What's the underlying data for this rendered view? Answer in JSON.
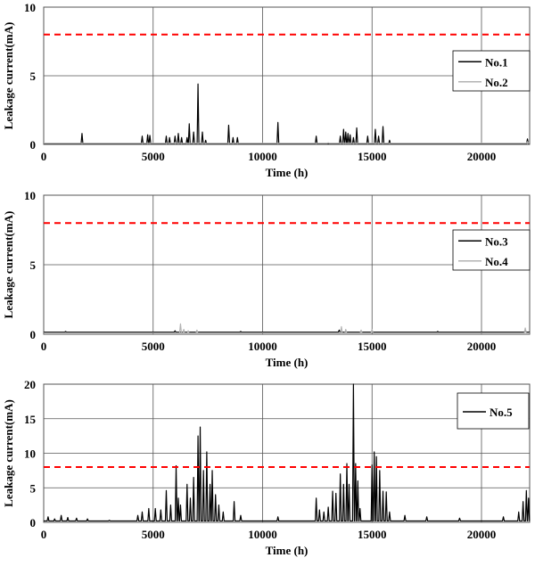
{
  "chart_data": [
    {
      "type": "line",
      "xlabel": "Time (h)",
      "ylabel": "Leakage current(mA)",
      "xlim": [
        0,
        22200
      ],
      "ylim": [
        0,
        10
      ],
      "xticks": [
        0,
        5000,
        10000,
        15000,
        20000
      ],
      "yticks": [
        0,
        5,
        10
      ],
      "grid": true,
      "legend_position": "right",
      "threshold": {
        "value": 8,
        "color": "#ff0000",
        "style": "dashed"
      },
      "series": [
        {
          "name": "No.1",
          "color": "#000000",
          "baseline": 0.05,
          "points": [
            [
              1750,
              0.8
            ],
            [
              4500,
              0.6
            ],
            [
              4750,
              0.7
            ],
            [
              4850,
              0.65
            ],
            [
              5600,
              0.6
            ],
            [
              5750,
              0.5
            ],
            [
              6000,
              0.6
            ],
            [
              6150,
              0.8
            ],
            [
              6300,
              0.5
            ],
            [
              6550,
              0.5
            ],
            [
              6650,
              1.5
            ],
            [
              6850,
              0.9
            ],
            [
              7050,
              4.4
            ],
            [
              7250,
              0.9
            ],
            [
              7400,
              0.3
            ],
            [
              8450,
              1.4
            ],
            [
              8650,
              0.5
            ],
            [
              8850,
              0.5
            ],
            [
              10700,
              1.6
            ],
            [
              12450,
              0.6
            ],
            [
              13550,
              0.6
            ],
            [
              13700,
              1.1
            ],
            [
              13800,
              0.9
            ],
            [
              13900,
              0.8
            ],
            [
              14000,
              0.7
            ],
            [
              14150,
              0.5
            ],
            [
              14300,
              1.2
            ],
            [
              14800,
              0.6
            ],
            [
              15150,
              1.1
            ],
            [
              15300,
              0.6
            ],
            [
              15500,
              1.3
            ],
            [
              15800,
              0.3
            ],
            [
              22100,
              0.4
            ]
          ]
        },
        {
          "name": "No.2",
          "color": "#b3b3b3",
          "baseline": 0.08,
          "points": [
            [
              6000,
              0.15
            ],
            [
              13000,
              0.12
            ],
            [
              22100,
              0.2
            ]
          ]
        }
      ]
    },
    {
      "type": "line",
      "xlabel": "Time (h)",
      "ylabel": "Leakage current(mA)",
      "xlim": [
        0,
        22200
      ],
      "ylim": [
        0,
        10
      ],
      "xticks": [
        0,
        5000,
        10000,
        15000,
        20000
      ],
      "yticks": [
        0,
        5,
        10
      ],
      "grid": true,
      "legend_position": "right",
      "threshold": {
        "value": 8,
        "color": "#ff0000",
        "style": "dashed"
      },
      "series": [
        {
          "name": "No.3",
          "color": "#000000",
          "baseline": 0.15,
          "points": [
            [
              1000,
              0.2
            ],
            [
              3000,
              0.15
            ],
            [
              6000,
              0.25
            ],
            [
              9000,
              0.2
            ],
            [
              13500,
              0.3
            ],
            [
              15000,
              0.25
            ],
            [
              18000,
              0.2
            ],
            [
              22000,
              0.3
            ]
          ]
        },
        {
          "name": "No.4",
          "color": "#b3b3b3",
          "baseline": 0.1,
          "points": [
            [
              6250,
              0.75
            ],
            [
              6400,
              0.35
            ],
            [
              6600,
              0.25
            ],
            [
              7000,
              0.3
            ],
            [
              13600,
              0.55
            ],
            [
              13800,
              0.35
            ],
            [
              14500,
              0.3
            ],
            [
              15000,
              0.35
            ],
            [
              22000,
              0.45
            ]
          ]
        }
      ]
    },
    {
      "type": "line",
      "xlabel": "Time (h)",
      "ylabel": "Leakage current(mA)",
      "xlim": [
        0,
        22200
      ],
      "ylim": [
        0,
        20
      ],
      "xticks": [
        0,
        5000,
        10000,
        15000,
        20000
      ],
      "yticks": [
        0,
        5,
        10,
        15,
        20
      ],
      "grid": true,
      "legend_position": "top-right",
      "threshold": {
        "value": 8,
        "color": "#ff0000",
        "style": "dashed"
      },
      "series": [
        {
          "name": "No.5",
          "color": "#000000",
          "baseline": 0.2,
          "points": [
            [
              200,
              0.8
            ],
            [
              500,
              0.5
            ],
            [
              800,
              1.0
            ],
            [
              1100,
              0.7
            ],
            [
              1500,
              0.6
            ],
            [
              2000,
              0.5
            ],
            [
              3000,
              0.3
            ],
            [
              4300,
              1.0
            ],
            [
              4500,
              1.5
            ],
            [
              4800,
              2.0
            ],
            [
              5100,
              2.0
            ],
            [
              5350,
              1.8
            ],
            [
              5600,
              4.6
            ],
            [
              5800,
              2.5
            ],
            [
              6050,
              8.2
            ],
            [
              6150,
              3.5
            ],
            [
              6250,
              2.5
            ],
            [
              6550,
              5.5
            ],
            [
              6700,
              3.5
            ],
            [
              6850,
              6.5
            ],
            [
              7050,
              12.5
            ],
            [
              7150,
              13.8
            ],
            [
              7300,
              7.5
            ],
            [
              7450,
              10.2
            ],
            [
              7600,
              5.5
            ],
            [
              7700,
              7.5
            ],
            [
              7850,
              4.0
            ],
            [
              8000,
              2.5
            ],
            [
              8200,
              1.5
            ],
            [
              8700,
              3.0
            ],
            [
              9000,
              1.0
            ],
            [
              10700,
              0.8
            ],
            [
              12450,
              3.5
            ],
            [
              12600,
              1.8
            ],
            [
              12800,
              1.5
            ],
            [
              13000,
              2.2
            ],
            [
              13200,
              4.5
            ],
            [
              13350,
              4.2
            ],
            [
              13550,
              7.0
            ],
            [
              13700,
              5.5
            ],
            [
              13850,
              8.5
            ],
            [
              13950,
              5.5
            ],
            [
              14150,
              20.0
            ],
            [
              14250,
              8.5
            ],
            [
              14350,
              6.0
            ],
            [
              14450,
              2.0
            ],
            [
              15000,
              8.3
            ],
            [
              15100,
              10.2
            ],
            [
              15200,
              9.5
            ],
            [
              15350,
              7.5
            ],
            [
              15500,
              4.5
            ],
            [
              15650,
              4.4
            ],
            [
              15800,
              1.5
            ],
            [
              16500,
              1.0
            ],
            [
              17500,
              0.8
            ],
            [
              19000,
              0.6
            ],
            [
              21000,
              0.8
            ],
            [
              21700,
              1.5
            ],
            [
              21900,
              3.0
            ],
            [
              22050,
              4.6
            ],
            [
              22150,
              3.5
            ]
          ]
        }
      ]
    }
  ]
}
